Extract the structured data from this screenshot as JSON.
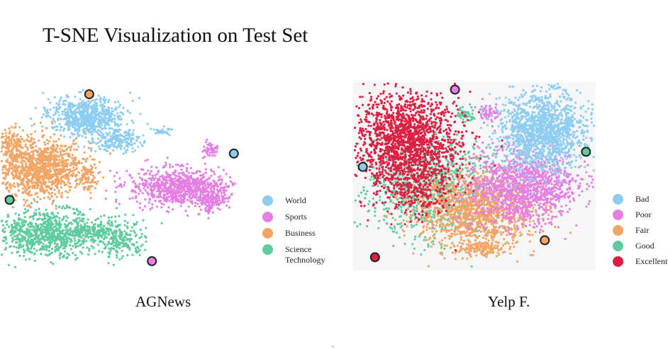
{
  "title": "T-SNE Visualization on Test Set",
  "chart_data": [
    {
      "type": "scatter",
      "caption": "AGNews",
      "legend": [
        {
          "label": "World",
          "color": "#8ecdf2"
        },
        {
          "label": "Sports",
          "color": "#e57fe3"
        },
        {
          "label": "Business",
          "color": "#f2a564"
        },
        {
          "label": "Science\nTechnology",
          "color": "#5fcc9f"
        }
      ],
      "clusters": [
        {
          "class": "World",
          "center": [
            0.38,
            0.18
          ]
        },
        {
          "class": "Sports",
          "center": [
            0.76,
            0.55
          ]
        },
        {
          "class": "Business",
          "center": [
            0.16,
            0.42
          ]
        },
        {
          "class": "Science\nTechnology",
          "center": [
            0.22,
            0.78
          ]
        }
      ],
      "highlighted_points": [
        {
          "class": "Business",
          "position": [
            0.37,
            0.05
          ]
        },
        {
          "class": "World",
          "position": [
            0.97,
            0.37
          ]
        },
        {
          "class": "Science\nTechnology",
          "position": [
            0.04,
            0.62
          ]
        },
        {
          "class": "Sports",
          "position": [
            0.63,
            0.95
          ]
        }
      ]
    },
    {
      "type": "scatter",
      "caption": "Yelp F.",
      "legend": [
        {
          "label": "Bad",
          "color": "#8ecdf2"
        },
        {
          "label": "Poor",
          "color": "#e57fe3"
        },
        {
          "label": "Fair",
          "color": "#f2a564"
        },
        {
          "label": "Good",
          "color": "#5fcc9f"
        },
        {
          "label": "Excellent",
          "color": "#dc1f42"
        }
      ],
      "clusters": [
        {
          "class": "Excellent",
          "center": [
            0.22,
            0.3
          ]
        },
        {
          "class": "Bad",
          "center": [
            0.78,
            0.26
          ]
        },
        {
          "class": "Poor",
          "center": [
            0.7,
            0.56
          ]
        },
        {
          "class": "Fair",
          "center": [
            0.5,
            0.7
          ]
        },
        {
          "class": "Good",
          "center": [
            0.32,
            0.58
          ]
        }
      ],
      "highlighted_points": [
        {
          "class": "Poor",
          "position": [
            0.42,
            0.04
          ]
        },
        {
          "class": "Good",
          "position": [
            0.96,
            0.37
          ]
        },
        {
          "class": "Bad",
          "position": [
            0.04,
            0.45
          ]
        },
        {
          "class": "Fair",
          "position": [
            0.79,
            0.84
          ]
        },
        {
          "class": "Excellent",
          "position": [
            0.09,
            0.93
          ]
        }
      ]
    }
  ]
}
